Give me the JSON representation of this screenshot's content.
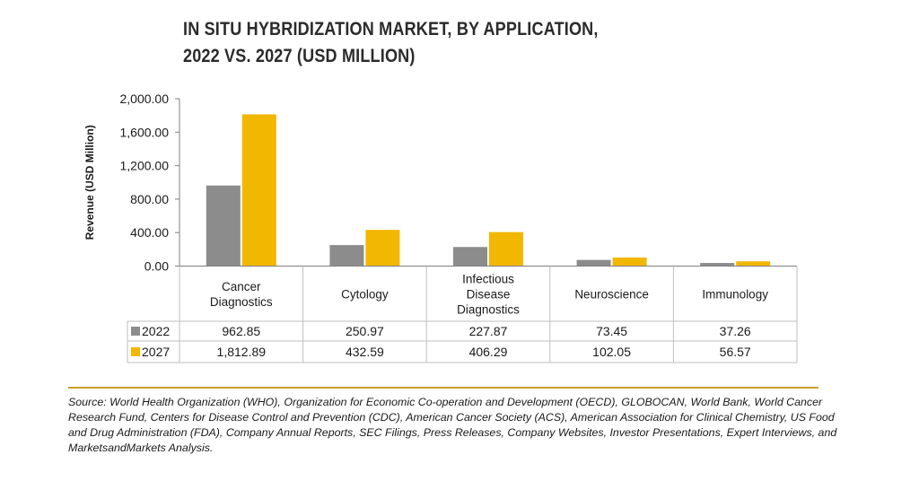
{
  "title": {
    "line1": "IN SITU HYBRIDIZATION MARKET, BY APPLICATION,",
    "line2": "2022 VS. 2027 (USD MILLION)"
  },
  "colors": {
    "series_2022": "#8c8c8c",
    "series_2027": "#f2b700",
    "grid": "#bfbfbf",
    "rule": "#c9a227"
  },
  "chart_data": {
    "type": "bar",
    "title": "IN SITU HYBRIDIZATION MARKET, BY APPLICATION, 2022 VS. 2027 (USD MILLION)",
    "ylabel": "Revenue (USD Million)",
    "xlabel": "",
    "ylim": [
      0,
      2000
    ],
    "yticks": [
      "0.00",
      "400.00",
      "800.00",
      "1,200.00",
      "1,600.00",
      "2,000.00"
    ],
    "grid": false,
    "legend": "data-table",
    "categories": [
      [
        "Cancer",
        "Diagnostics"
      ],
      [
        "Cytology"
      ],
      [
        "Infectious",
        "Disease",
        "Diagnostics"
      ],
      [
        "Neuroscience"
      ],
      [
        "Immunology"
      ]
    ],
    "series": [
      {
        "name": "2022",
        "values": [
          962.85,
          250.97,
          227.87,
          73.45,
          37.26
        ],
        "labels": [
          "962.85",
          "250.97",
          "227.87",
          "73.45",
          "37.26"
        ]
      },
      {
        "name": "2027",
        "values": [
          1812.89,
          432.59,
          406.29,
          102.05,
          56.57
        ],
        "labels": [
          "1,812.89",
          "432.59",
          "406.29",
          "102.05",
          "56.57"
        ]
      }
    ]
  },
  "source": {
    "label": "Source:",
    "text": " World Health Organization (WHO), Organization for Economic Co-operation and Development (OECD), GLOBOCAN, World Bank, World Cancer Research Fund, Centers for Disease Control and Prevention (CDC), American Cancer Society (ACS), American Association for Clinical Chemistry, US Food and Drug Administration (FDA), Company Annual Reports, SEC Filings, Press Releases, Company Websites, Investor Presentations, Expert Interviews, and MarketsandMarkets Analysis."
  }
}
